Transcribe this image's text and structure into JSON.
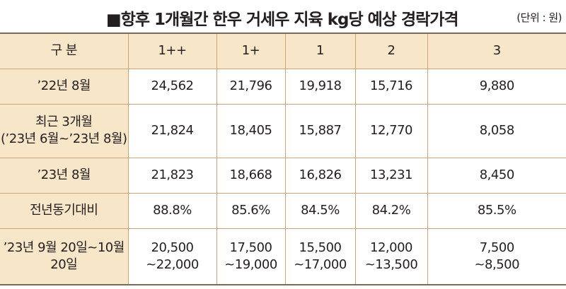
{
  "header": {
    "title": "■항후 1개월간 한우 거세우 지육 kg당 예상 경락가격",
    "unit": "(단위 : 원)"
  },
  "table": {
    "columns": [
      "구 분",
      "1++",
      "1+",
      "1",
      "2",
      "3"
    ],
    "rows": [
      {
        "label": [
          "’22년 8월"
        ],
        "values": [
          [
            "24,562"
          ],
          [
            "21,796"
          ],
          [
            "19,918"
          ],
          [
            "15,716"
          ],
          [
            "9,880"
          ]
        ]
      },
      {
        "label": [
          "최근 3개월",
          "(’23년 6월~’23년 8월)"
        ],
        "values": [
          [
            "21,824"
          ],
          [
            "18,405"
          ],
          [
            "15,887"
          ],
          [
            "12,770"
          ],
          [
            "8,058"
          ]
        ]
      },
      {
        "label": [
          "’23년 8월"
        ],
        "values": [
          [
            "21,823"
          ],
          [
            "18,668"
          ],
          [
            "16,826"
          ],
          [
            "13,231"
          ],
          [
            "8,450"
          ]
        ]
      },
      {
        "label": [
          "전년동기대비"
        ],
        "values": [
          [
            "88.8%"
          ],
          [
            "85.6%"
          ],
          [
            "84.5%"
          ],
          [
            "84.2%"
          ],
          [
            "85.5%"
          ]
        ]
      },
      {
        "label": [
          "’23년 9월 20일~10월 20일"
        ],
        "values": [
          [
            "20,500",
            "~22,000"
          ],
          [
            "17,500",
            "~19,000"
          ],
          [
            "15,500",
            "~17,000"
          ],
          [
            "12,000",
            "~13,500"
          ],
          [
            "7,500",
            "~8,500"
          ]
        ]
      }
    ]
  }
}
